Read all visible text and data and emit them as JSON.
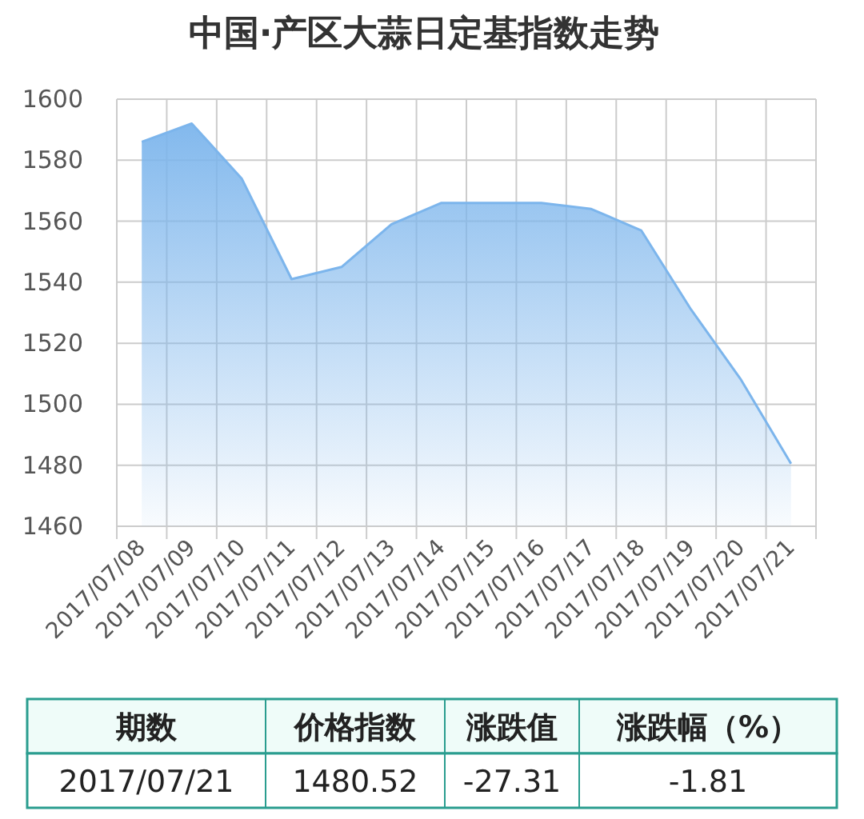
{
  "chart_data": {
    "type": "area",
    "title": "中国·产区大蒜日定基指数走势",
    "categories": [
      "2017/07/08",
      "2017/07/09",
      "2017/07/10",
      "2017/07/11",
      "2017/07/12",
      "2017/07/13",
      "2017/07/14",
      "2017/07/15",
      "2017/07/16",
      "2017/07/17",
      "2017/07/18",
      "2017/07/19",
      "2017/07/20",
      "2017/07/21"
    ],
    "values": [
      1586,
      1592,
      1574,
      1541,
      1545,
      1559,
      1566,
      1566,
      1566,
      1564,
      1557,
      1531,
      1508,
      1480.52
    ],
    "color": "#7cb5ec",
    "ylim": [
      1460,
      1600
    ],
    "yticks": [
      1460,
      1480,
      1500,
      1520,
      1540,
      1560,
      1580,
      1600
    ],
    "grid": true,
    "annotations": [
      "期数",
      "价格指数",
      "涨跌值",
      "涨跌幅（%）",
      "2017/07/21",
      "1480.52",
      "-27.31",
      "-1.81"
    ]
  }
}
